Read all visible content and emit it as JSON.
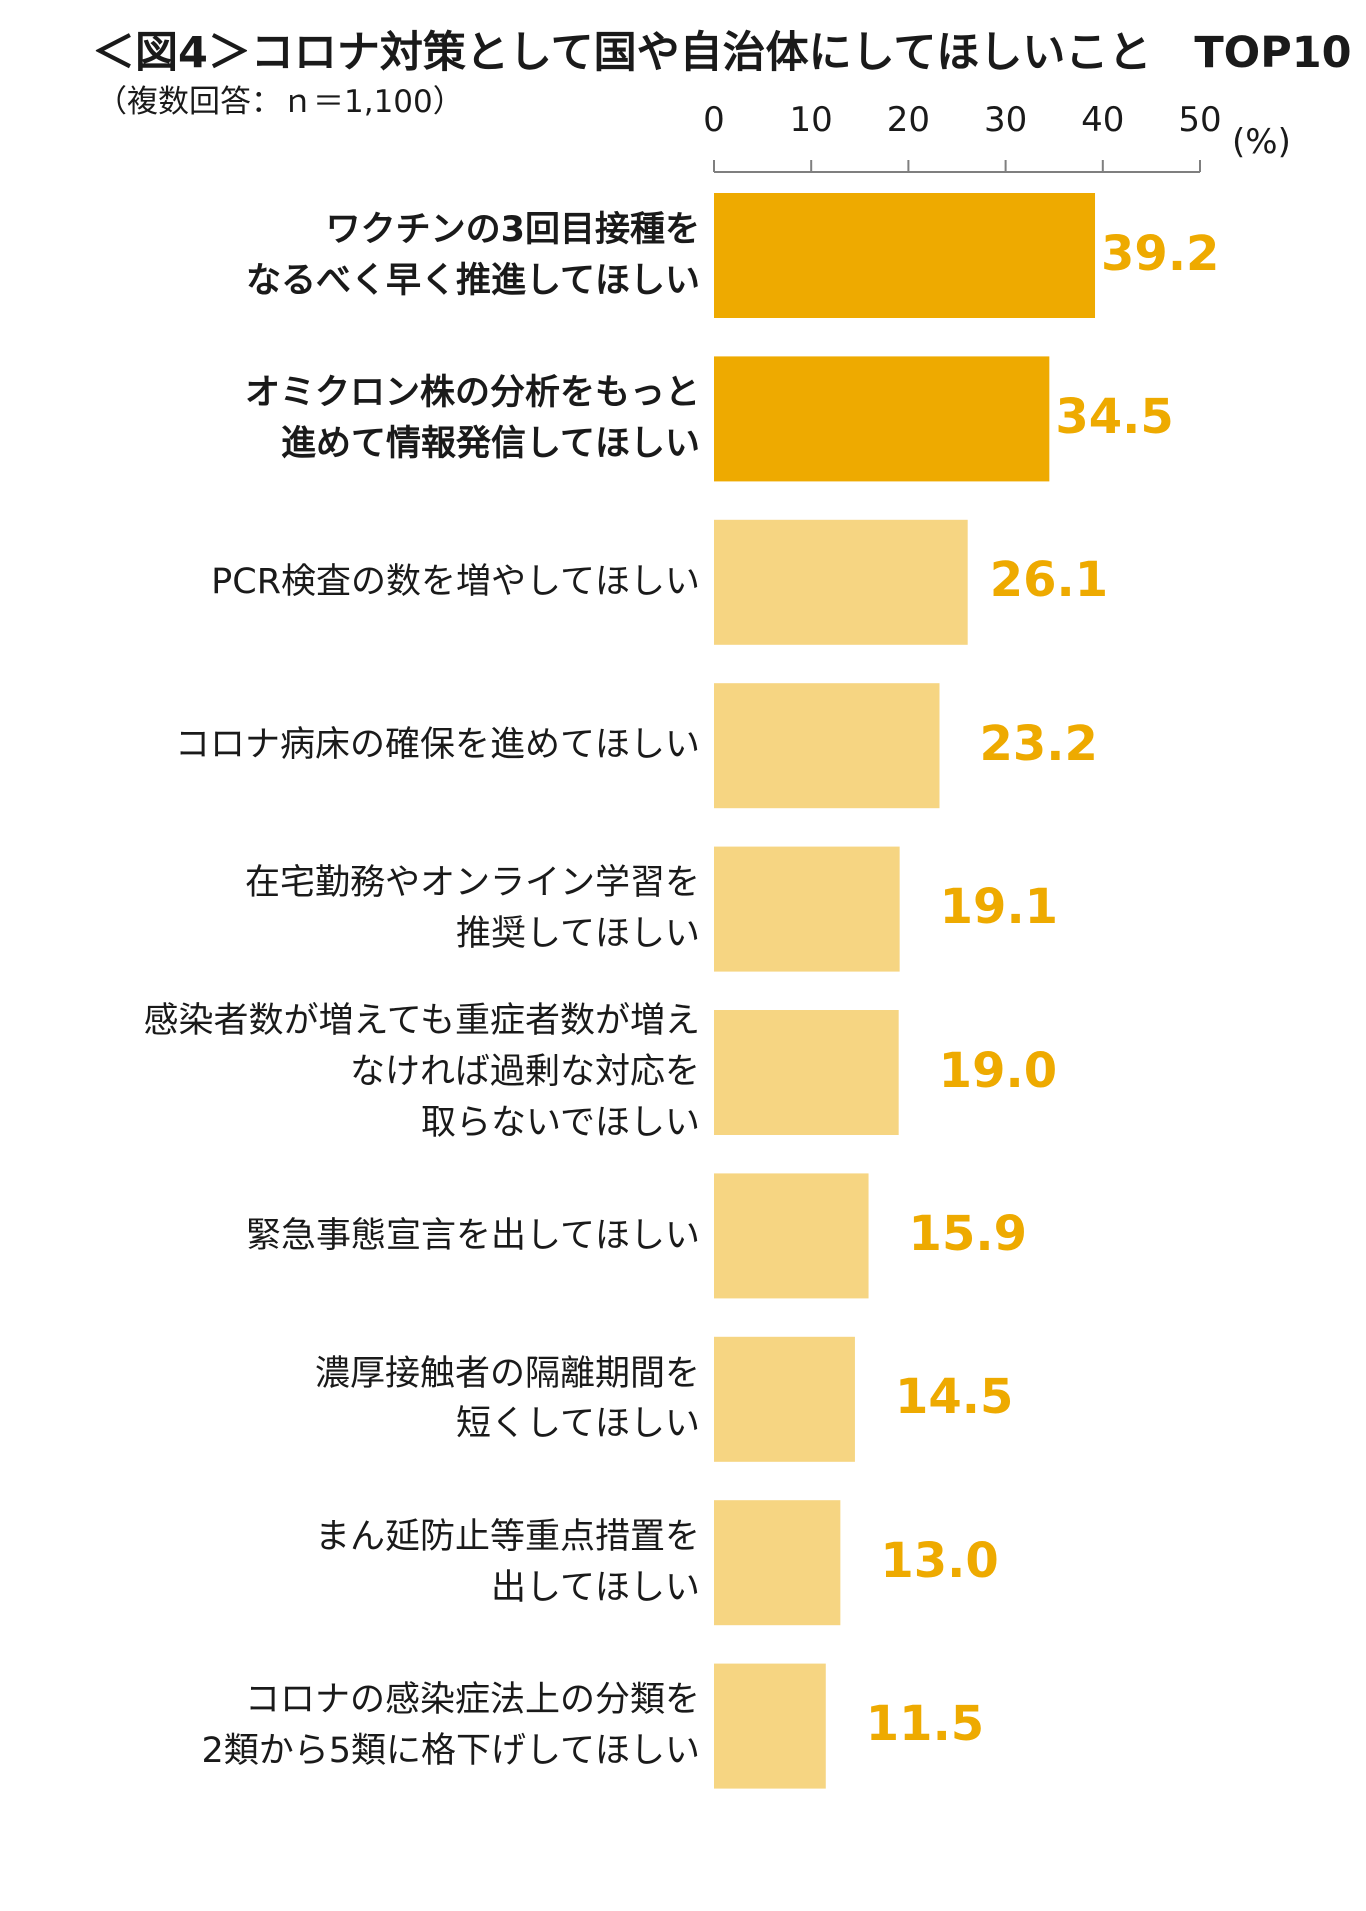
{
  "title": "＜図4＞コロナ対策として国や自治体にしてほしいこと　TOP10",
  "subtitle": "（複数回答：ｎ＝1,100）",
  "chart_data": {
    "type": "bar",
    "orientation": "horizontal",
    "title": "＜図4＞コロナ対策として国や自治体にしてほしいこと　TOP10",
    "subtitle": "（複数回答：ｎ＝1,100）",
    "unit": "(%)",
    "xlim": [
      0,
      50
    ],
    "ticks": [
      0,
      10,
      20,
      30,
      40,
      50
    ],
    "grid": false,
    "colors": {
      "highlight": "#eeaa00",
      "normal": "#f6d582",
      "value_text": "#eeaa00"
    },
    "categories": [
      {
        "lines": [
          "ワクチンの3回目接種を",
          "なるべく早く推進してほしい"
        ],
        "value": 39.2,
        "label": "39.2",
        "highlight": true
      },
      {
        "lines": [
          "オミクロン株の分析をもっと",
          "進めて情報発信してほしい"
        ],
        "value": 34.5,
        "label": "34.5",
        "highlight": true
      },
      {
        "lines": [
          "PCR検査の数を増やしてほしい"
        ],
        "value": 26.1,
        "label": "26.1",
        "highlight": false
      },
      {
        "lines": [
          "コロナ病床の確保を進めてほしい"
        ],
        "value": 23.2,
        "label": "23.2",
        "highlight": false
      },
      {
        "lines": [
          "在宅勤務やオンライン学習を",
          "推奨してほしい"
        ],
        "value": 19.1,
        "label": "19.1",
        "highlight": false
      },
      {
        "lines": [
          "感染者数が増えても重症者数が増え",
          "なければ過剰な対応を",
          "取らないでほしい"
        ],
        "value": 19.0,
        "label": "19.0",
        "highlight": false
      },
      {
        "lines": [
          "緊急事態宣言を出してほしい"
        ],
        "value": 15.9,
        "label": "15.9",
        "highlight": false
      },
      {
        "lines": [
          "濃厚接触者の隔離期間を",
          "短くしてほしい"
        ],
        "value": 14.5,
        "label": "14.5",
        "highlight": false
      },
      {
        "lines": [
          "まん延防止等重点措置を",
          "出してほしい"
        ],
        "value": 13.0,
        "label": "13.0",
        "highlight": false
      },
      {
        "lines": [
          "コロナの感染症法上の分類を",
          "2類から5類に格下げしてほしい"
        ],
        "value": 11.5,
        "label": "11.5",
        "highlight": false
      }
    ]
  }
}
